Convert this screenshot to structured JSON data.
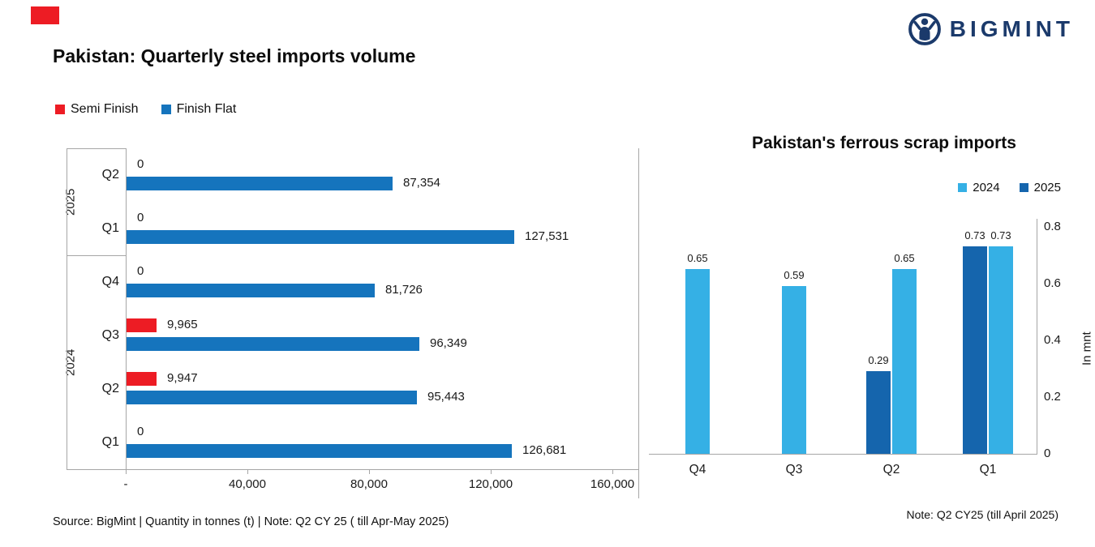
{
  "brand": {
    "name": "BIGMINT"
  },
  "header": {
    "title": "Pakistan: Quarterly steel imports volume"
  },
  "colors": {
    "semi_finish_red": "#ed1c24",
    "finish_flat_blue": "#1574bd",
    "scrap_2024_lightblue": "#35b0e5",
    "scrap_2025_blue": "#1565ad",
    "brand_navy": "#1b3a6b",
    "axis_gray": "#a6a6a6"
  },
  "chart_data": [
    {
      "id": "quarterly-steel-imports",
      "type": "bar",
      "orientation": "horizontal",
      "title": "Pakistan: Quarterly steel imports volume",
      "legend": [
        "Semi Finish",
        "Finish Flat"
      ],
      "legend_position": "top-left",
      "year_groups": [
        {
          "label": "2025",
          "quarters": [
            "Q2",
            "Q1"
          ]
        },
        {
          "label": "2024",
          "quarters": [
            "Q4",
            "Q3",
            "Q2",
            "Q1"
          ]
        }
      ],
      "categories": [
        "Q2 2025",
        "Q1 2025",
        "Q4 2024",
        "Q3 2024",
        "Q2 2024",
        "Q1 2024"
      ],
      "series": [
        {
          "name": "Semi Finish",
          "color": "#ed1c24",
          "values": [
            0,
            0,
            0,
            9965,
            9947,
            0
          ],
          "labels": [
            "0",
            "0",
            "0",
            "9,965",
            "9,947",
            "0"
          ]
        },
        {
          "name": "Finish Flat",
          "color": "#1574bd",
          "values": [
            87354,
            127531,
            81726,
            96349,
            95443,
            126681
          ],
          "labels": [
            "87,354",
            "127,531",
            "81,726",
            "96,349",
            "95,443",
            "126,681"
          ]
        }
      ],
      "xlim": [
        0,
        160000
      ],
      "x_ticks": [
        {
          "value": 0,
          "label": "-"
        },
        {
          "value": 40000,
          "label": "40,000"
        },
        {
          "value": 80000,
          "label": "80,000"
        },
        {
          "value": 120000,
          "label": "120,000"
        },
        {
          "value": 160000,
          "label": "160,000"
        }
      ],
      "grid": false,
      "source": "Source: BigMint | Quantity in tonnes (t) | Note: Q2 CY 25 ( till Apr-May 2025)"
    },
    {
      "id": "ferrous-scrap-imports",
      "type": "bar",
      "orientation": "vertical",
      "title": "Pakistan's ferrous scrap imports",
      "legend": [
        "2024",
        "2025"
      ],
      "legend_position": "top-right",
      "categories": [
        "Q4",
        "Q3",
        "Q2",
        "Q1"
      ],
      "series": [
        {
          "name": "2025",
          "color": "#1565ad",
          "values": [
            null,
            null,
            0.29,
            0.73
          ],
          "labels": [
            "",
            "",
            "0.29",
            "0.73"
          ]
        },
        {
          "name": "2024",
          "color": "#35b0e5",
          "values": [
            0.65,
            0.59,
            0.65,
            0.73
          ],
          "labels": [
            "0.65",
            "0.59",
            "0.65",
            "0.73"
          ]
        }
      ],
      "ylim": [
        0,
        0.8
      ],
      "y_axis_side": "right",
      "y_ticks": [
        {
          "value": 0,
          "label": "0"
        },
        {
          "value": 0.2,
          "label": "0.2"
        },
        {
          "value": 0.4,
          "label": "0.4"
        },
        {
          "value": 0.6,
          "label": "0.6"
        },
        {
          "value": 0.8,
          "label": "0.8"
        }
      ],
      "ylabel": "In mnt",
      "grid": false,
      "note": "Note: Q2 CY25 (till April 2025)"
    }
  ]
}
